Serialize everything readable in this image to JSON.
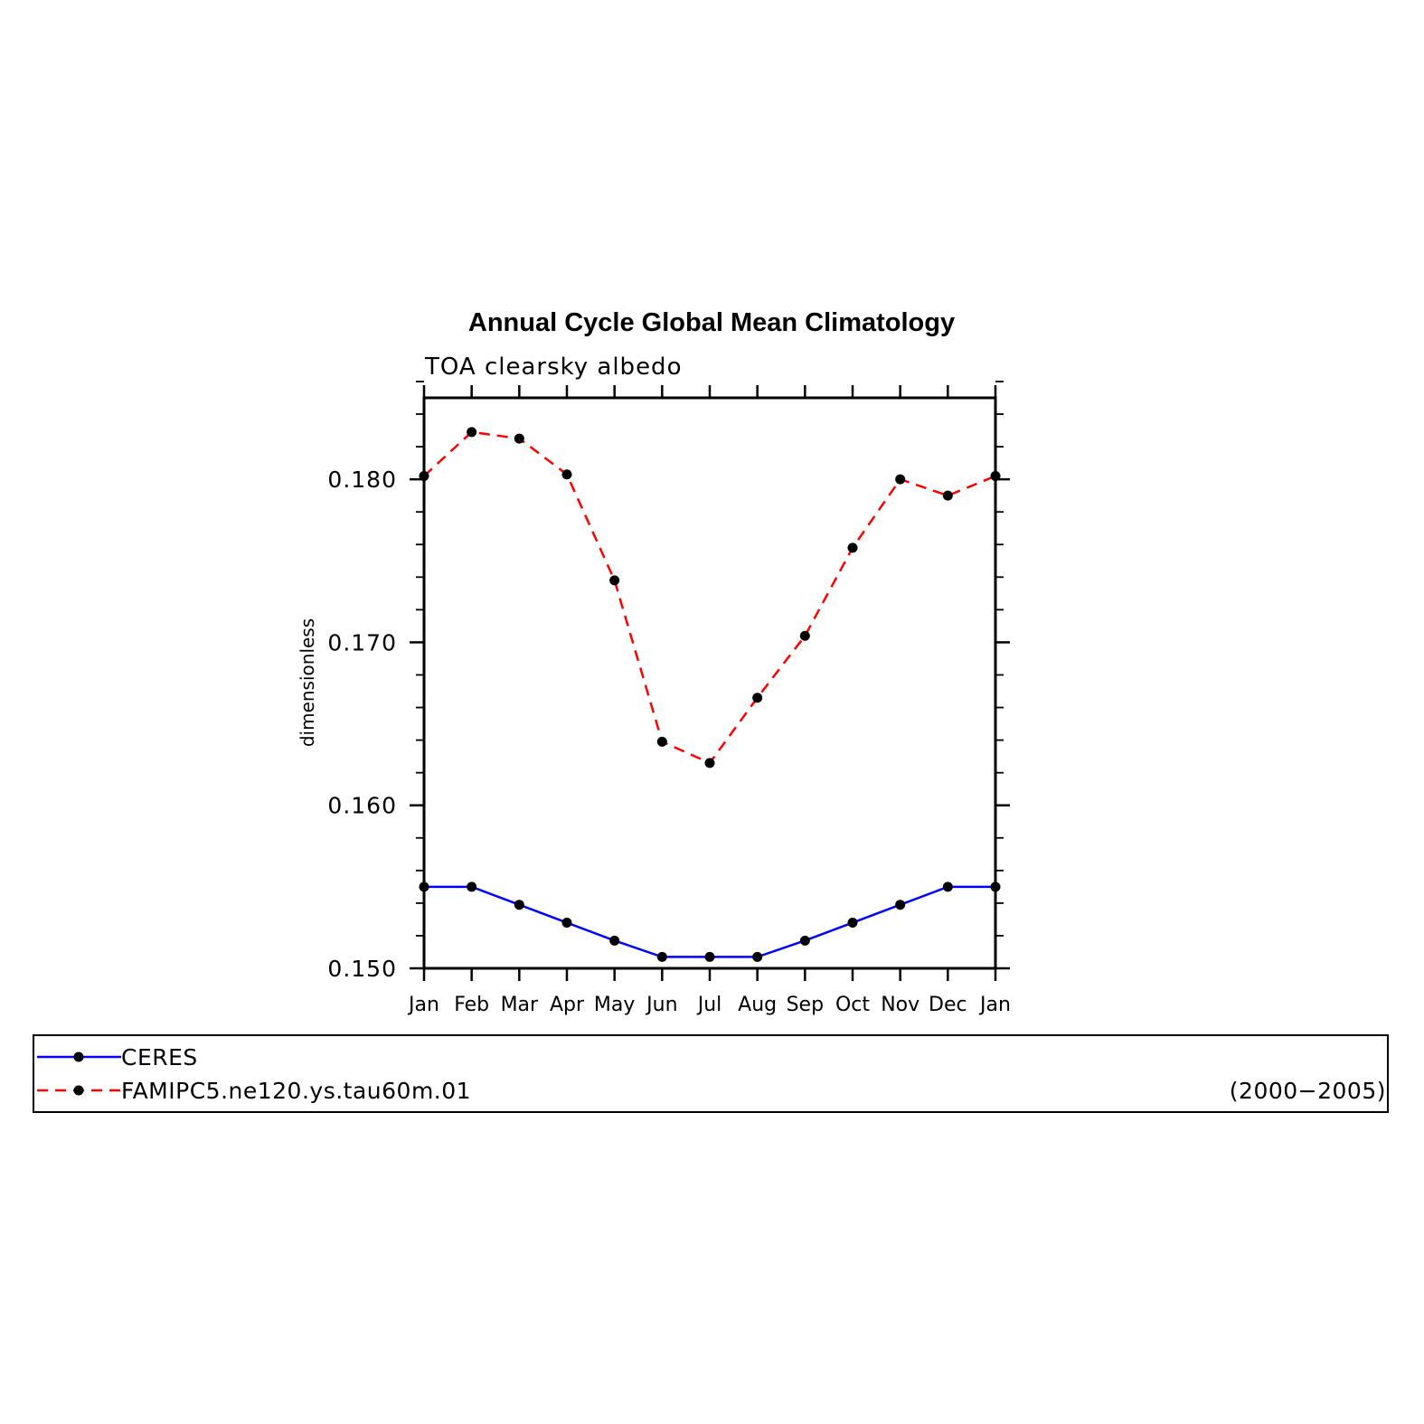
{
  "chart_data": {
    "type": "line",
    "title": "Annual Cycle Global Mean Climatology",
    "subtitle": "TOA clearsky albedo",
    "ylabel": "dimensionless",
    "xlabel": "",
    "categories": [
      "Jan",
      "Feb",
      "Mar",
      "Apr",
      "May",
      "Jun",
      "Jul",
      "Aug",
      "Sep",
      "Oct",
      "Nov",
      "Dec",
      "Jan"
    ],
    "ylim": [
      0.15,
      0.185
    ],
    "yticks": [
      0.15,
      0.16,
      0.17,
      0.18
    ],
    "ytick_labels": [
      "0.150",
      "0.160",
      "0.170",
      "0.180"
    ],
    "series": [
      {
        "name": "CERES",
        "color": "#0000ff",
        "style": "solid",
        "marker": "circle",
        "values": [
          0.155,
          0.155,
          0.1539,
          0.1528,
          0.1517,
          0.1507,
          0.1507,
          0.1507,
          0.1517,
          0.1528,
          0.1539,
          0.155,
          0.155
        ]
      },
      {
        "name": "FAMIPC5.ne120.ys.tau60m.01",
        "color": "#ff0000",
        "style": "dashed",
        "marker": "circle",
        "values": [
          0.1802,
          0.1829,
          0.1825,
          0.1803,
          0.1738,
          0.1639,
          0.1626,
          0.1666,
          0.1704,
          0.1758,
          0.18,
          0.179,
          0.1802
        ]
      }
    ],
    "legend": {
      "position": "bottom",
      "note": "(2000−2005)"
    }
  }
}
